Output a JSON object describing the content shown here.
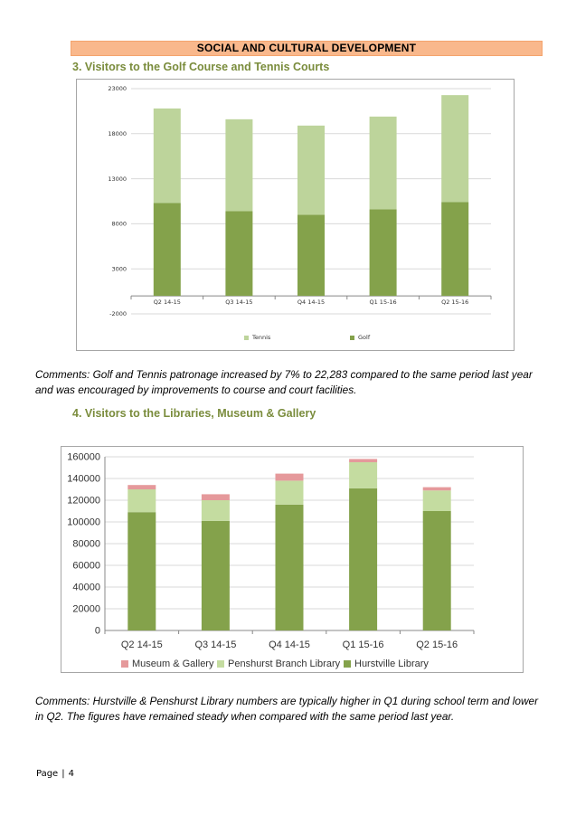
{
  "section_title": "SOCIAL AND CULTURAL DEVELOPMENT",
  "heading_3": "3.  Visitors to the Golf Course and Tennis Courts",
  "heading_4": "4.  Visitors to the Libraries, Museum & Gallery",
  "comment_1": "Comments: Golf and Tennis patronage increased by 7% to 22,283 compared to the same period last year and was encouraged by improvements to course and court facilities.",
  "comment_2": "Comments: Hurstville & Penshurst Library numbers are typically higher in Q1 during school term and lower in Q2. The figures have remained steady when compared with the same period last year.",
  "footer": {
    "page_label": "Page",
    "separator": "|",
    "page_number": "4"
  },
  "colors": {
    "banner": "#f9b88c",
    "heading": "#7a8c3c",
    "dark_green": "#84a24b",
    "light_green": "#bdd49b",
    "pink": "#e5999b"
  },
  "chart_data": [
    {
      "type": "bar",
      "stacked": true,
      "title": "",
      "categories": [
        "Q2 14-15",
        "Q3 14-15",
        "Q4 14-15",
        "Q1 15-16",
        "Q2 15-16"
      ],
      "series": [
        {
          "name": "Golf",
          "color": "#84a24b",
          "values": [
            10300,
            9400,
            9000,
            9600,
            10400
          ]
        },
        {
          "name": "Tennis",
          "color": "#bdd49b",
          "values": [
            10500,
            10200,
            9900,
            10300,
            11883
          ]
        }
      ],
      "yticks": [
        "23000",
        "18000",
        "13000",
        "8000",
        "3000",
        "-2000"
      ],
      "ylim": [
        -2000,
        23000
      ],
      "legend": [
        "Tennis",
        "Golf"
      ],
      "legend_position": "bottom"
    },
    {
      "type": "bar",
      "stacked": true,
      "title": "",
      "categories": [
        "Q2 14-15",
        "Q3 14-15",
        "Q4 14-15",
        "Q1 15-16",
        "Q2 15-16"
      ],
      "series": [
        {
          "name": "Hurstville Library",
          "color": "#84a24b",
          "values": [
            109000,
            101000,
            116000,
            131000,
            110000
          ]
        },
        {
          "name": "Penshurst Branch Library",
          "color": "#c4dca0",
          "values": [
            21000,
            19000,
            22000,
            24000,
            19000
          ]
        },
        {
          "name": "Museum & Gallery",
          "color": "#e5999b",
          "values": [
            4000,
            5500,
            6500,
            3000,
            3000
          ]
        }
      ],
      "yticks": [
        "160000",
        "140000",
        "120000",
        "100000",
        "80000",
        "60000",
        "40000",
        "20000",
        "0"
      ],
      "ylim": [
        0,
        160000
      ],
      "legend": [
        "Museum & Gallery",
        "Penshurst Branch Library",
        "Hurstville Library"
      ],
      "legend_position": "bottom"
    }
  ]
}
